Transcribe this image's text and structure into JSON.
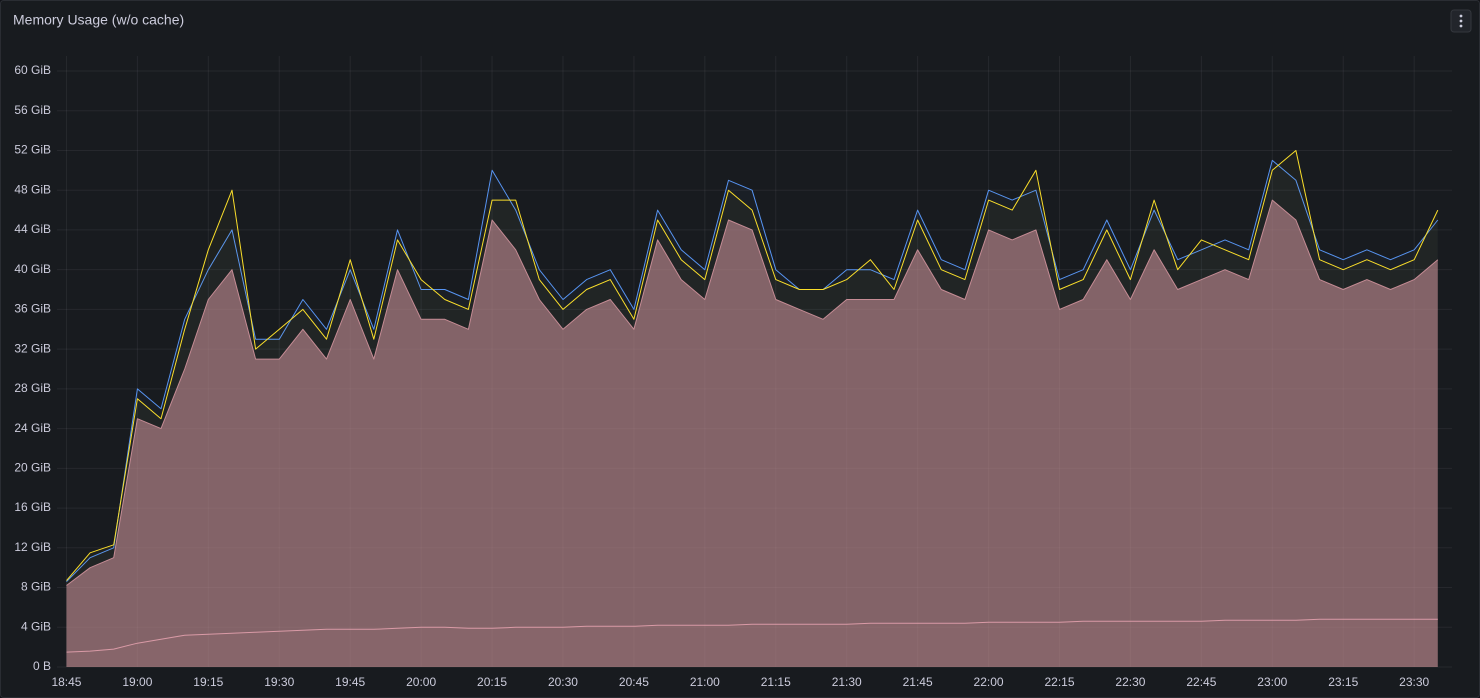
{
  "chart_data": {
    "type": "area",
    "title": "Memory Usage (w/o cache)",
    "x": [
      "18:45",
      "18:50",
      "18:55",
      "19:00",
      "19:05",
      "19:10",
      "19:15",
      "19:20",
      "19:25",
      "19:30",
      "19:35",
      "19:40",
      "19:45",
      "19:50",
      "19:55",
      "20:00",
      "20:05",
      "20:10",
      "20:15",
      "20:20",
      "20:25",
      "20:30",
      "20:35",
      "20:40",
      "20:45",
      "20:50",
      "20:55",
      "21:00",
      "21:05",
      "21:10",
      "21:15",
      "21:20",
      "21:25",
      "21:30",
      "21:35",
      "21:40",
      "21:45",
      "21:50",
      "21:55",
      "22:00",
      "22:05",
      "22:10",
      "22:15",
      "22:20",
      "22:25",
      "22:30",
      "22:35",
      "22:40",
      "22:45",
      "22:50",
      "22:55",
      "23:00",
      "23:05",
      "23:10",
      "23:15",
      "23:20",
      "23:25",
      "23:30",
      "23:35"
    ],
    "series": [
      {
        "color": "#c98a96",
        "fill_opacity": 0.6,
        "values": [
          8.2,
          10,
          11,
          25,
          24,
          30,
          37,
          40,
          31,
          31,
          34,
          31,
          37,
          31,
          40,
          35,
          35,
          34,
          45,
          42,
          37,
          34,
          36,
          37,
          34,
          43,
          39,
          37,
          45,
          44,
          37,
          36,
          35,
          37,
          37,
          37,
          42,
          38,
          37,
          44,
          43,
          44,
          36,
          37,
          41,
          37,
          42,
          38,
          39,
          40,
          39,
          47,
          45,
          39,
          38,
          39,
          38,
          39,
          41
        ]
      },
      {
        "color": "#5794f2",
        "fill_opacity": 0.04,
        "values": [
          8.6,
          11,
          12,
          28,
          26,
          35,
          40,
          44,
          33,
          33,
          37,
          34,
          40,
          34,
          44,
          38,
          38,
          37,
          50,
          46,
          40,
          37,
          39,
          40,
          36,
          46,
          42,
          40,
          49,
          48,
          40,
          38,
          38,
          40,
          40,
          39,
          46,
          41,
          40,
          48,
          47,
          48,
          39,
          40,
          45,
          40,
          46,
          41,
          42,
          43,
          42,
          51,
          49,
          42,
          41,
          42,
          41,
          42,
          45
        ]
      },
      {
        "color": "#fade2a",
        "fill_opacity": 0.03,
        "values": [
          8.7,
          11.5,
          12.3,
          27,
          25,
          34,
          42,
          48,
          32,
          34,
          36,
          33,
          41,
          33,
          43,
          39,
          37,
          36,
          47,
          47,
          39,
          36,
          38,
          39,
          35,
          45,
          41,
          39,
          48,
          46,
          39,
          38,
          38,
          39,
          41,
          38,
          45,
          40,
          39,
          47,
          46,
          50,
          38,
          39,
          44,
          39,
          47,
          40,
          43,
          42,
          41,
          50,
          52,
          41,
          40,
          41,
          40,
          41,
          46
        ]
      },
      {
        "color": "#d99aa6",
        "fill_opacity": 0.05,
        "values": [
          1.5,
          1.6,
          1.8,
          2.4,
          2.8,
          3.2,
          3.3,
          3.4,
          3.5,
          3.6,
          3.7,
          3.8,
          3.8,
          3.8,
          3.9,
          4.0,
          4.0,
          3.9,
          3.9,
          4.0,
          4.0,
          4.0,
          4.1,
          4.1,
          4.1,
          4.2,
          4.2,
          4.2,
          4.2,
          4.3,
          4.3,
          4.3,
          4.3,
          4.3,
          4.4,
          4.4,
          4.4,
          4.4,
          4.4,
          4.5,
          4.5,
          4.5,
          4.5,
          4.6,
          4.6,
          4.6,
          4.6,
          4.6,
          4.6,
          4.7,
          4.7,
          4.7,
          4.7,
          4.8,
          4.8,
          4.8,
          4.8,
          4.8,
          4.8
        ]
      }
    ],
    "xlim": [
      "18:43",
      "23:38"
    ],
    "xticks": [
      "18:45",
      "19:00",
      "19:15",
      "19:30",
      "19:45",
      "20:00",
      "20:15",
      "20:30",
      "20:45",
      "21:00",
      "21:15",
      "21:30",
      "21:45",
      "22:00",
      "22:15",
      "22:30",
      "22:45",
      "23:00",
      "23:15",
      "23:30"
    ],
    "ylim": [
      0,
      60
    ],
    "yticks": [
      {
        "value": 0,
        "label": "0 B"
      },
      {
        "value": 4,
        "label": "4 GiB"
      },
      {
        "value": 8,
        "label": "8 GiB"
      },
      {
        "value": 12,
        "label": "12 GiB"
      },
      {
        "value": 16,
        "label": "16 GiB"
      },
      {
        "value": 20,
        "label": "20 GiB"
      },
      {
        "value": 24,
        "label": "24 GiB"
      },
      {
        "value": 28,
        "label": "28 GiB"
      },
      {
        "value": 32,
        "label": "32 GiB"
      },
      {
        "value": 36,
        "label": "36 GiB"
      },
      {
        "value": 40,
        "label": "40 GiB"
      },
      {
        "value": 44,
        "label": "44 GiB"
      },
      {
        "value": 48,
        "label": "48 GiB"
      },
      {
        "value": 52,
        "label": "52 GiB"
      },
      {
        "value": 56,
        "label": "56 GiB"
      },
      {
        "value": 60,
        "label": "60 GiB"
      }
    ],
    "grid": true
  }
}
